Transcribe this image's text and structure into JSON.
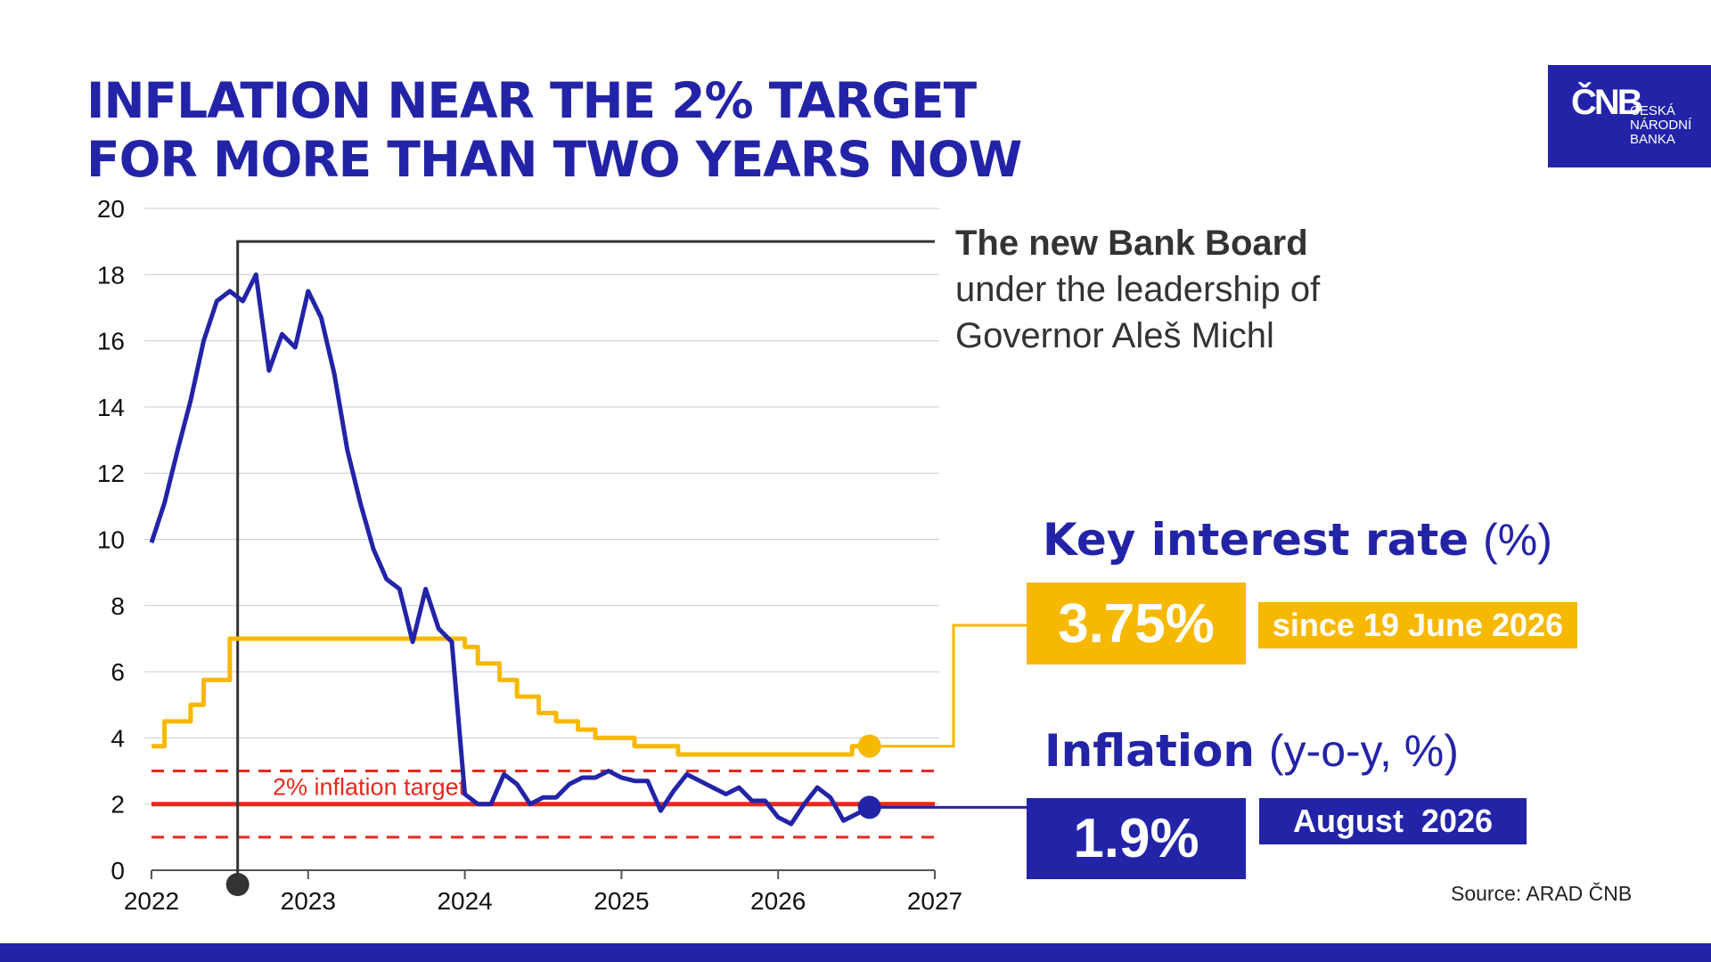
{
  "title": {
    "line1": "INFLATION NEAR THE 2% TARGET",
    "line2": "FOR MORE THAN TWO YEARS NOW"
  },
  "logo": {
    "mark": "ČNB",
    "line1": "ČESKÁ",
    "line2": "NÁRODNÍ",
    "line3": "BANKA"
  },
  "board_note": {
    "line1": "The new Bank Board",
    "line2": "under the leadership of",
    "line3": "Governor Aleš Michl"
  },
  "key_rate": {
    "title": "Key interest rate",
    "unit": "(%)",
    "value": "3.75%",
    "since": "since 19 June 2026"
  },
  "inflation": {
    "title": "Inflation",
    "unit": "(y-o-y, %)",
    "value": "1.9%",
    "month": "August  2026"
  },
  "source": "Source: ARAD ČNB",
  "colors": {
    "brand_blue": "#2323a8",
    "rate_yellow": "#f7b800",
    "target_red": "#e8281e",
    "marker_dark": "#333333"
  },
  "chart_data": {
    "type": "line",
    "xlim": [
      2022,
      2027
    ],
    "ylim": [
      0,
      20
    ],
    "xticks": [
      "2022",
      "2023",
      "2024",
      "2025",
      "2026",
      "2027"
    ],
    "yticks": [
      "0",
      "2",
      "4",
      "6",
      "8",
      "10",
      "12",
      "14",
      "16",
      "18",
      "20"
    ],
    "grid": "horizontal",
    "target_label": "2% inflation target",
    "target": 2,
    "tolerance_band": [
      1,
      3
    ],
    "board_start": 2022.55,
    "series": [
      {
        "name": "Inflation",
        "step": false,
        "x": [
          2022.0,
          2022.083,
          2022.167,
          2022.25,
          2022.333,
          2022.417,
          2022.5,
          2022.583,
          2022.667,
          2022.75,
          2022.833,
          2022.917,
          2023.0,
          2023.083,
          2023.167,
          2023.25,
          2023.333,
          2023.417,
          2023.5,
          2023.583,
          2023.667,
          2023.75,
          2023.833,
          2023.917,
          2024.0,
          2024.083,
          2024.167,
          2024.25,
          2024.333,
          2024.417,
          2024.5,
          2024.583,
          2024.667,
          2024.75,
          2024.833,
          2024.917,
          2025.0,
          2025.083,
          2025.167,
          2025.25,
          2025.333,
          2025.417,
          2025.5,
          2025.583,
          2025.667,
          2025.75,
          2025.833,
          2025.917,
          2026.0,
          2026.083,
          2026.167,
          2026.25,
          2026.333,
          2026.417,
          2026.5,
          2026.583
        ],
        "y": [
          9.9,
          11.1,
          12.7,
          14.2,
          16.0,
          17.2,
          17.5,
          17.2,
          18.0,
          15.1,
          16.2,
          15.8,
          17.5,
          16.7,
          15.0,
          12.7,
          11.1,
          9.7,
          8.8,
          8.5,
          6.9,
          8.5,
          7.3,
          6.9,
          2.3,
          2.0,
          2.0,
          2.9,
          2.6,
          2.0,
          2.2,
          2.2,
          2.6,
          2.8,
          2.8,
          3.0,
          2.8,
          2.7,
          2.7,
          1.8,
          2.4,
          2.9,
          2.7,
          2.5,
          2.3,
          2.5,
          2.1,
          2.1,
          1.6,
          1.4,
          2.0,
          2.5,
          2.2,
          1.5,
          1.7,
          1.9
        ]
      },
      {
        "name": "Key interest rate",
        "step": true,
        "x": [
          2022.0,
          2022.083,
          2022.25,
          2022.333,
          2022.5,
          2024.0,
          2024.083,
          2024.222,
          2024.333,
          2024.472,
          2024.583,
          2024.722,
          2024.833,
          2025.083,
          2025.361,
          2026.472,
          2026.583
        ],
        "y": [
          3.75,
          4.5,
          5.0,
          5.75,
          7.0,
          6.75,
          6.25,
          5.75,
          5.25,
          4.75,
          4.5,
          4.25,
          4.0,
          3.75,
          3.5,
          3.75,
          3.75
        ]
      }
    ]
  }
}
